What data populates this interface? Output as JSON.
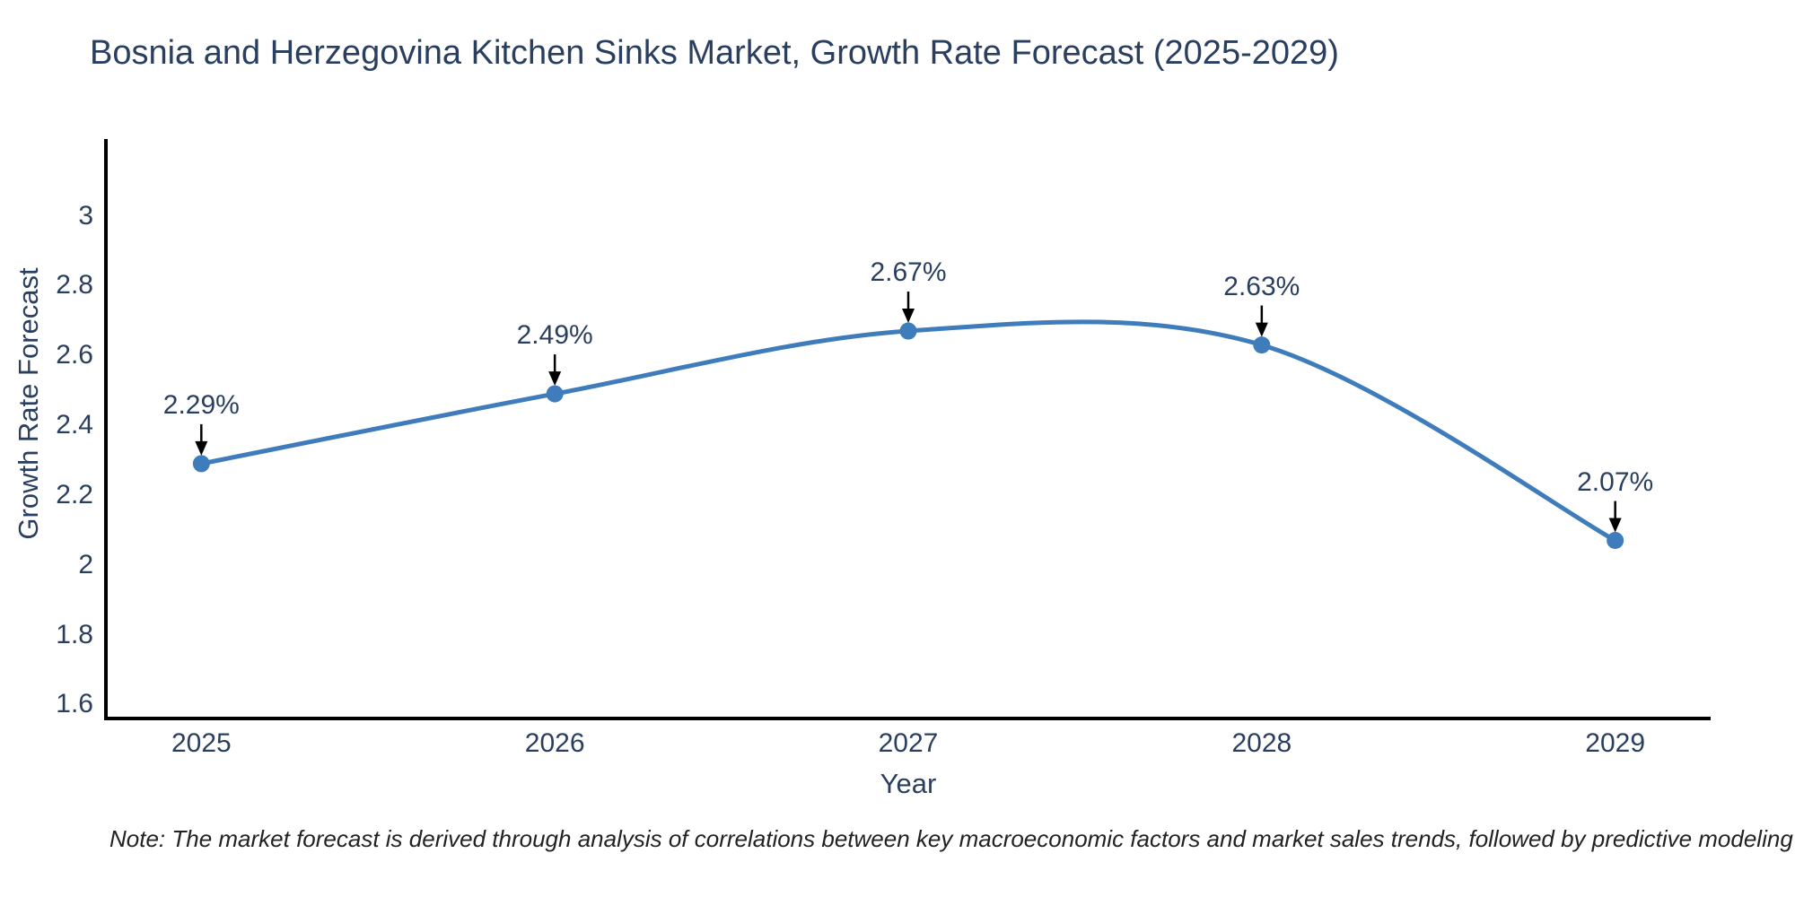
{
  "title": "Bosnia and Herzegovina Kitchen Sinks Market, Growth Rate Forecast (2025-2029)",
  "note": "Note: The market forecast is derived through analysis of correlations between key macroeconomic factors and market sales trends, followed by predictive modeling to project future sales",
  "chart_data": {
    "type": "line",
    "line_shape": "spline",
    "title": "Bosnia and Herzegovina Kitchen Sinks Market, Growth Rate Forecast (2025-2029)",
    "xlabel": "Year",
    "ylabel": "Growth Rate Forecast",
    "x": [
      2025,
      2026,
      2027,
      2028,
      2029
    ],
    "y": [
      2.29,
      2.49,
      2.67,
      2.63,
      2.07
    ],
    "point_labels": [
      "2.29%",
      "2.49%",
      "2.67%",
      "2.63%",
      "2.07%"
    ],
    "xticks": [
      "2025",
      "2026",
      "2027",
      "2028",
      "2029"
    ],
    "yticks": [
      1.6,
      1.8,
      2,
      2.2,
      2.4,
      2.6,
      2.8,
      3
    ],
    "ytick_labels": [
      "1.6",
      "1.8",
      "2",
      "2.2",
      "2.4",
      "2.6",
      "2.8",
      "3"
    ],
    "xlim": [
      2024.73,
      2029.27
    ],
    "ylim": [
      1.56,
      3.22
    ],
    "grid": false,
    "legend": "none",
    "colors": {
      "line": "#3e7cbc",
      "marker": "#3e7cbc",
      "text": "#2a3f5f",
      "axis": "#000000",
      "arrow": "#000000",
      "background": "#ffffff"
    }
  }
}
